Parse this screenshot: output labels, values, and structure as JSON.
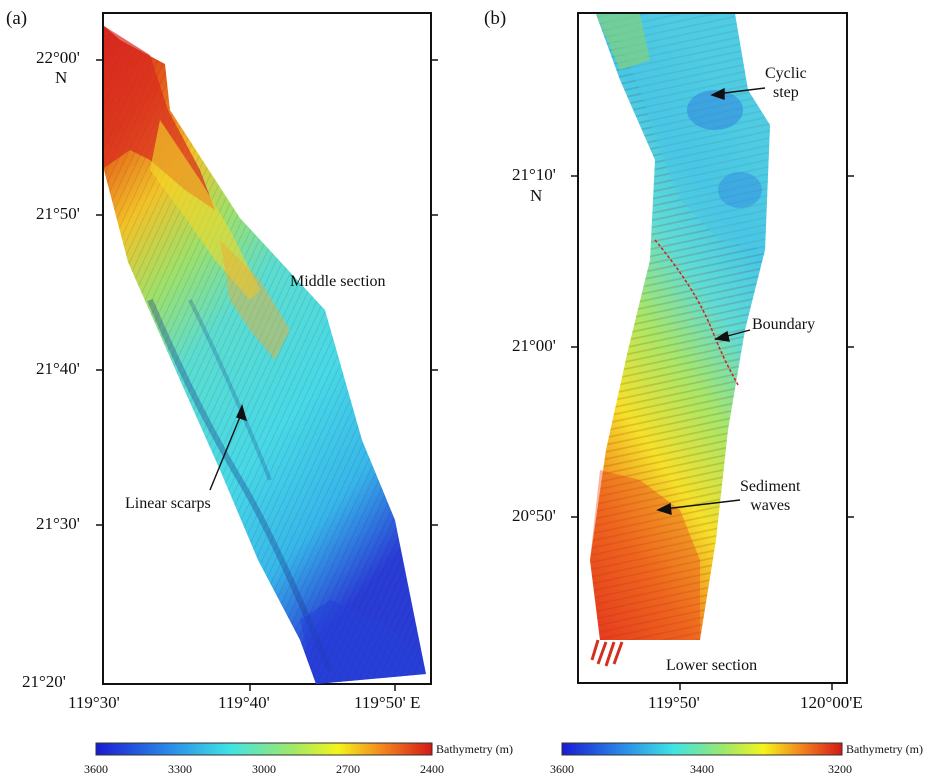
{
  "panel_a": {
    "label": "(a)",
    "lat_labels": [
      "22°00'",
      "21°50'",
      "21°40'",
      "21°30'",
      "21°20'"
    ],
    "lat_hemisphere": "N",
    "lon_labels": [
      "119°30'",
      "119°40'",
      "119°50' E"
    ],
    "section_label": "Middle section",
    "annotations": {
      "linear_scarps": "Linear scarps"
    }
  },
  "panel_b": {
    "label": "(b)",
    "lat_labels": [
      "21°10'",
      "21°00'",
      "20°50'"
    ],
    "lat_hemisphere": "N",
    "lon_labels": [
      "119°50'",
      "120°00'E"
    ],
    "section_label": "Lower section",
    "annotations": {
      "cyclic_step_line1": "Cyclic",
      "cyclic_step_line2": "step",
      "boundary": "Boundary",
      "sediment_waves_line1": "Sediment",
      "sediment_waves_line2": "waves"
    }
  },
  "colorbar_a": {
    "title": "Bathymetry (m)",
    "ticks": [
      "3600",
      "3300",
      "3000",
      "2700",
      "2400"
    ]
  },
  "colorbar_b": {
    "title": "Bathymetry (m)",
    "ticks": [
      "3600",
      "3400",
      "3200"
    ]
  },
  "colors": {
    "deep": "#1a1adf",
    "mid": "#3fe6e6",
    "shallow_mid": "#f4f41c",
    "shallow": "#d81818",
    "boundary_line": "#cc2222"
  }
}
